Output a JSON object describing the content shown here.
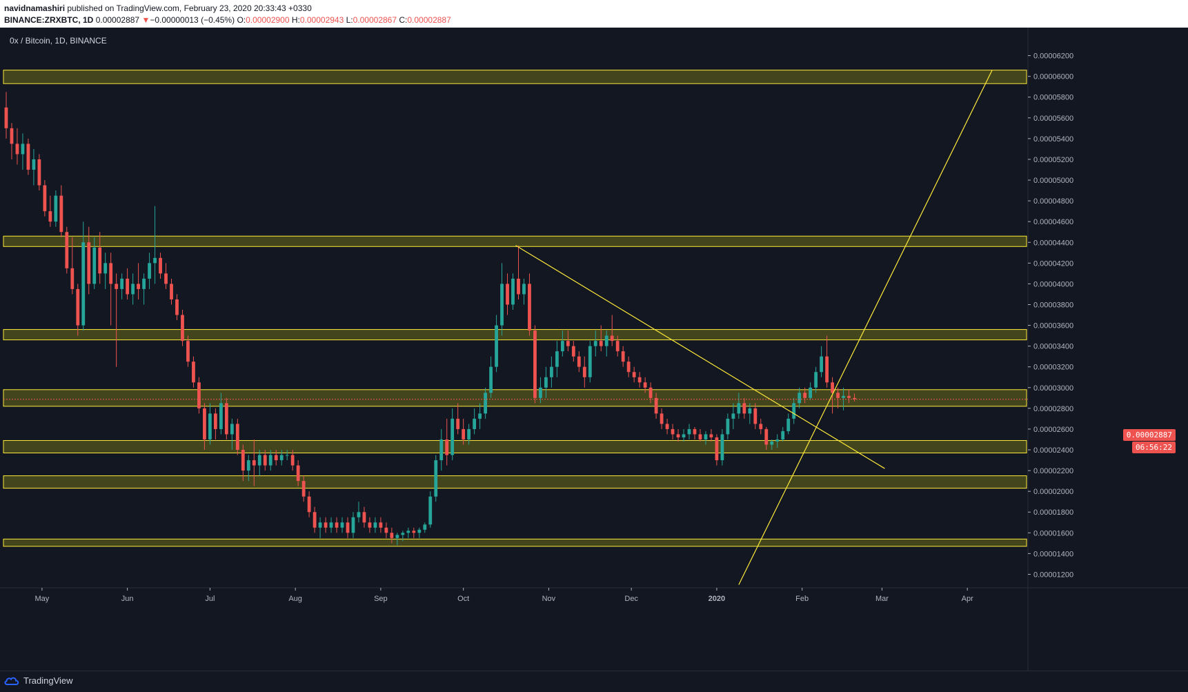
{
  "header": {
    "author": "navidnamashiri",
    "published_text": "published on TradingView.com, February 23, 2020 20:33:43 +0330",
    "symbol": "BINANCE:ZRXBTC, 1D",
    "last_price": "0.00002887",
    "change_arrow": "▼",
    "change_text": "−0.00000013 (−0.45%)",
    "o_label": "O:",
    "o_value": "0.00002900",
    "h_label": "H:",
    "h_value": "0.00002943",
    "l_label": "L:",
    "l_value": "0.00002867",
    "c_label": "C:",
    "c_value": "0.00002887"
  },
  "legend": {
    "title": "0x / Bitcoin, 1D, BINANCE"
  },
  "footer": {
    "brand": "TradingView"
  },
  "price_labels": {
    "current": "0.00002887",
    "countdown": "06:56:22",
    "partial": "0."
  },
  "colors": {
    "background": "#131722",
    "up": "#26a69a",
    "down": "#ef5350",
    "zone_fill": "#6b6b1a",
    "zone_stroke": "#ffeb3b",
    "trendline": "#ffeb3b",
    "axis_text": "#b2b5be"
  },
  "chart_data": {
    "type": "candlestick",
    "title": "0x / Bitcoin, 1D, BINANCE",
    "x_tick_labels": [
      "May",
      "Jun",
      "Jul",
      "Aug",
      "Sep",
      "Oct",
      "Nov",
      "Dec",
      "2020",
      "Feb",
      "Mar",
      "Apr"
    ],
    "y_tick_labels": [
      "0.00006200",
      "0.00006000",
      "0.00005800",
      "0.00005600",
      "0.00005400",
      "0.00005200",
      "0.00005000",
      "0.00004800",
      "0.00004600",
      "0.00004400",
      "0.00004200",
      "0.00004000",
      "0.00003800",
      "0.00003600",
      "0.00003400",
      "0.00003200",
      "0.00003000",
      "0.00002800",
      "0.00002600",
      "0.00002400",
      "0.00002200",
      "0.00002000",
      "0.00001800",
      "0.00001600",
      "0.00001400",
      "0.00001200"
    ],
    "ylim": [
      1.07e-05,
      6.47e-05
    ],
    "current_price": 2.887e-05,
    "horizontal_zones": [
      [
        5.93e-05,
        6.06e-05
      ],
      [
        4.36e-05,
        4.46e-05
      ],
      [
        3.46e-05,
        3.56e-05
      ],
      [
        2.82e-05,
        2.98e-05
      ],
      [
        2.37e-05,
        2.49e-05
      ],
      [
        2.03e-05,
        2.15e-05
      ],
      [
        1.47e-05,
        1.54e-05
      ]
    ],
    "trendlines": [
      {
        "from": [
          "2019-10-20",
          4.37e-05
        ],
        "to": [
          "2020-03-02",
          2.22e-05
        ]
      },
      {
        "from": [
          "2020-01-09",
          1.1e-05
        ],
        "to": [
          "2020-04-10",
          6.06e-05
        ]
      }
    ],
    "candles_ohlc": [
      [
        "2019-04-18",
        5.7,
        5.85,
        5.4,
        5.5
      ],
      [
        "2019-04-20",
        5.5,
        5.55,
        5.2,
        5.35
      ],
      [
        "2019-04-22",
        5.35,
        5.5,
        5.15,
        5.25
      ],
      [
        "2019-04-24",
        5.25,
        5.45,
        5.1,
        5.35
      ],
      [
        "2019-04-26",
        5.35,
        5.4,
        5.05,
        5.1
      ],
      [
        "2019-04-28",
        5.1,
        5.3,
        4.95,
        5.2
      ],
      [
        "2019-04-30",
        5.2,
        5.25,
        4.9,
        4.95
      ],
      [
        "2019-05-02",
        4.95,
        5.0,
        4.65,
        4.7
      ],
      [
        "2019-05-04",
        4.7,
        4.85,
        4.55,
        4.6
      ],
      [
        "2019-05-06",
        4.6,
        4.9,
        4.55,
        4.85
      ],
      [
        "2019-05-08",
        4.85,
        4.95,
        4.45,
        4.5
      ],
      [
        "2019-05-10",
        4.5,
        4.55,
        4.1,
        4.15
      ],
      [
        "2019-05-12",
        4.15,
        4.45,
        3.9,
        3.95
      ],
      [
        "2019-05-14",
        3.95,
        4.0,
        3.5,
        3.6
      ],
      [
        "2019-05-16",
        3.6,
        4.6,
        3.55,
        4.4
      ],
      [
        "2019-05-18",
        4.4,
        4.55,
        3.9,
        4.0
      ],
      [
        "2019-05-20",
        4.0,
        4.45,
        3.95,
        4.35
      ],
      [
        "2019-05-22",
        4.35,
        4.5,
        4.0,
        4.1
      ],
      [
        "2019-05-24",
        4.1,
        4.3,
        3.95,
        4.2
      ],
      [
        "2019-05-26",
        4.2,
        4.3,
        3.6,
        4.0
      ],
      [
        "2019-05-28",
        4.0,
        4.1,
        3.2,
        3.95
      ],
      [
        "2019-05-30",
        3.95,
        4.1,
        3.85,
        4.05
      ],
      [
        "2019-06-01",
        4.05,
        4.15,
        3.85,
        3.9
      ],
      [
        "2019-06-03",
        3.9,
        4.1,
        3.8,
        4.0
      ],
      [
        "2019-06-05",
        4.0,
        4.2,
        3.85,
        3.95
      ],
      [
        "2019-06-07",
        3.95,
        4.1,
        3.8,
        4.05
      ],
      [
        "2019-06-09",
        4.05,
        4.3,
        3.95,
        4.2
      ],
      [
        "2019-06-11",
        4.2,
        4.75,
        4.0,
        4.25
      ],
      [
        "2019-06-13",
        4.25,
        4.3,
        4.05,
        4.1
      ],
      [
        "2019-06-15",
        4.1,
        4.2,
        3.95,
        4.0
      ],
      [
        "2019-06-17",
        4.0,
        4.05,
        3.8,
        3.85
      ],
      [
        "2019-06-19",
        3.85,
        3.9,
        3.65,
        3.7
      ],
      [
        "2019-06-21",
        3.7,
        3.75,
        3.4,
        3.45
      ],
      [
        "2019-06-23",
        3.45,
        3.5,
        3.2,
        3.25
      ],
      [
        "2019-06-25",
        3.25,
        3.3,
        3.0,
        3.05
      ],
      [
        "2019-06-27",
        3.05,
        3.1,
        2.75,
        2.8
      ],
      [
        "2019-06-29",
        2.8,
        2.85,
        2.4,
        2.5
      ],
      [
        "2019-07-01",
        2.5,
        2.85,
        2.45,
        2.75
      ],
      [
        "2019-07-03",
        2.75,
        2.8,
        2.5,
        2.6
      ],
      [
        "2019-07-05",
        2.6,
        2.95,
        2.55,
        2.85
      ],
      [
        "2019-07-07",
        2.85,
        2.9,
        2.5,
        2.55
      ],
      [
        "2019-07-09",
        2.55,
        2.7,
        2.4,
        2.65
      ],
      [
        "2019-07-11",
        2.65,
        2.7,
        2.35,
        2.4
      ],
      [
        "2019-07-13",
        2.4,
        2.45,
        2.1,
        2.2
      ],
      [
        "2019-07-15",
        2.2,
        2.35,
        2.1,
        2.3
      ],
      [
        "2019-07-17",
        2.3,
        2.5,
        2.05,
        2.25
      ],
      [
        "2019-07-19",
        2.25,
        2.4,
        2.15,
        2.35
      ],
      [
        "2019-07-21",
        2.35,
        2.4,
        2.2,
        2.25
      ],
      [
        "2019-07-23",
        2.25,
        2.4,
        2.2,
        2.35
      ],
      [
        "2019-07-25",
        2.35,
        2.4,
        2.25,
        2.3
      ],
      [
        "2019-07-27",
        2.3,
        2.4,
        2.25,
        2.35
      ],
      [
        "2019-07-29",
        2.35,
        2.4,
        2.3,
        2.35
      ],
      [
        "2019-07-31",
        2.35,
        2.4,
        2.2,
        2.25
      ],
      [
        "2019-08-02",
        2.25,
        2.3,
        2.05,
        2.1
      ],
      [
        "2019-08-04",
        2.1,
        2.15,
        1.9,
        1.95
      ],
      [
        "2019-08-06",
        1.95,
        2.0,
        1.75,
        1.8
      ],
      [
        "2019-08-08",
        1.8,
        1.85,
        1.6,
        1.65
      ],
      [
        "2019-08-10",
        1.65,
        1.75,
        1.55,
        1.7
      ],
      [
        "2019-08-12",
        1.7,
        1.75,
        1.6,
        1.65
      ],
      [
        "2019-08-14",
        1.65,
        1.75,
        1.6,
        1.7
      ],
      [
        "2019-08-16",
        1.7,
        1.75,
        1.6,
        1.65
      ],
      [
        "2019-08-18",
        1.65,
        1.75,
        1.6,
        1.7
      ],
      [
        "2019-08-20",
        1.7,
        1.75,
        1.55,
        1.6
      ],
      [
        "2019-08-22",
        1.6,
        1.8,
        1.55,
        1.75
      ],
      [
        "2019-08-24",
        1.75,
        1.9,
        1.7,
        1.8
      ],
      [
        "2019-08-26",
        1.8,
        1.85,
        1.65,
        1.7
      ],
      [
        "2019-08-28",
        1.7,
        1.75,
        1.6,
        1.65
      ],
      [
        "2019-08-30",
        1.65,
        1.75,
        1.6,
        1.7
      ],
      [
        "2019-09-01",
        1.7,
        1.75,
        1.6,
        1.65
      ],
      [
        "2019-09-03",
        1.65,
        1.7,
        1.55,
        1.6
      ],
      [
        "2019-09-05",
        1.6,
        1.65,
        1.5,
        1.55
      ],
      [
        "2019-09-07",
        1.55,
        1.6,
        1.48,
        1.58
      ],
      [
        "2019-09-09",
        1.58,
        1.62,
        1.52,
        1.6
      ],
      [
        "2019-09-11",
        1.6,
        1.65,
        1.55,
        1.62
      ],
      [
        "2019-09-13",
        1.62,
        1.65,
        1.55,
        1.6
      ],
      [
        "2019-09-15",
        1.6,
        1.65,
        1.55,
        1.63
      ],
      [
        "2019-09-17",
        1.63,
        1.7,
        1.6,
        1.68
      ],
      [
        "2019-09-19",
        1.68,
        2.0,
        1.65,
        1.95
      ],
      [
        "2019-09-21",
        1.95,
        2.35,
        1.9,
        2.3
      ],
      [
        "2019-09-23",
        2.3,
        2.6,
        2.2,
        2.5
      ],
      [
        "2019-09-25",
        2.5,
        2.7,
        2.25,
        2.35
      ],
      [
        "2019-09-27",
        2.35,
        2.8,
        2.3,
        2.7
      ],
      [
        "2019-09-29",
        2.7,
        2.85,
        2.55,
        2.6
      ],
      [
        "2019-10-01",
        2.6,
        2.7,
        2.45,
        2.5
      ],
      [
        "2019-10-03",
        2.5,
        2.65,
        2.45,
        2.6
      ],
      [
        "2019-10-05",
        2.6,
        2.8,
        2.55,
        2.7
      ],
      [
        "2019-10-07",
        2.7,
        2.85,
        2.6,
        2.75
      ],
      [
        "2019-10-09",
        2.75,
        3.0,
        2.7,
        2.95
      ],
      [
        "2019-10-11",
        2.95,
        3.3,
        2.9,
        3.2
      ],
      [
        "2019-10-13",
        3.2,
        3.7,
        3.15,
        3.6
      ],
      [
        "2019-10-15",
        3.6,
        4.2,
        3.5,
        4.0
      ],
      [
        "2019-10-17",
        4.0,
        4.1,
        3.7,
        3.8
      ],
      [
        "2019-10-19",
        3.8,
        4.1,
        3.75,
        4.05
      ],
      [
        "2019-10-21",
        4.05,
        4.37,
        3.85,
        3.9
      ],
      [
        "2019-10-23",
        3.9,
        4.05,
        3.8,
        4.0
      ],
      [
        "2019-10-25",
        4.0,
        4.1,
        3.5,
        3.55
      ],
      [
        "2019-10-27",
        3.55,
        3.6,
        2.85,
        2.9
      ],
      [
        "2019-10-29",
        2.9,
        3.1,
        2.85,
        3.0
      ],
      [
        "2019-10-31",
        3.0,
        3.2,
        2.9,
        3.1
      ],
      [
        "2019-11-02",
        3.1,
        3.3,
        3.0,
        3.2
      ],
      [
        "2019-11-04",
        3.2,
        3.45,
        3.1,
        3.35
      ],
      [
        "2019-11-06",
        3.35,
        3.55,
        3.3,
        3.45
      ],
      [
        "2019-11-08",
        3.45,
        3.55,
        3.35,
        3.4
      ],
      [
        "2019-11-10",
        3.4,
        3.45,
        3.25,
        3.3
      ],
      [
        "2019-11-12",
        3.3,
        3.35,
        3.15,
        3.2
      ],
      [
        "2019-11-14",
        3.2,
        3.3,
        3.0,
        3.1
      ],
      [
        "2019-11-16",
        3.1,
        3.45,
        3.05,
        3.4
      ],
      [
        "2019-11-18",
        3.4,
        3.55,
        3.3,
        3.45
      ],
      [
        "2019-11-20",
        3.45,
        3.6,
        3.35,
        3.4
      ],
      [
        "2019-11-22",
        3.4,
        3.55,
        3.3,
        3.5
      ],
      [
        "2019-11-24",
        3.5,
        3.7,
        3.4,
        3.45
      ],
      [
        "2019-11-26",
        3.45,
        3.5,
        3.3,
        3.35
      ],
      [
        "2019-11-28",
        3.35,
        3.4,
        3.2,
        3.25
      ],
      [
        "2019-11-30",
        3.25,
        3.3,
        3.1,
        3.15
      ],
      [
        "2019-12-02",
        3.15,
        3.2,
        3.05,
        3.1
      ],
      [
        "2019-12-04",
        3.1,
        3.15,
        3.0,
        3.05
      ],
      [
        "2019-12-06",
        3.05,
        3.1,
        2.95,
        3.0
      ],
      [
        "2019-12-08",
        3.0,
        3.05,
        2.85,
        2.9
      ],
      [
        "2019-12-10",
        2.9,
        2.95,
        2.7,
        2.75
      ],
      [
        "2019-12-12",
        2.75,
        2.8,
        2.6,
        2.65
      ],
      [
        "2019-12-14",
        2.65,
        2.7,
        2.55,
        2.6
      ],
      [
        "2019-12-16",
        2.6,
        2.65,
        2.5,
        2.55
      ],
      [
        "2019-12-18",
        2.55,
        2.6,
        2.48,
        2.52
      ],
      [
        "2019-12-20",
        2.52,
        2.6,
        2.48,
        2.55
      ],
      [
        "2019-12-22",
        2.55,
        2.65,
        2.5,
        2.6
      ],
      [
        "2019-12-24",
        2.6,
        2.62,
        2.5,
        2.55
      ],
      [
        "2019-12-26",
        2.55,
        2.6,
        2.48,
        2.5
      ],
      [
        "2019-12-28",
        2.5,
        2.58,
        2.45,
        2.55
      ],
      [
        "2019-12-30",
        2.55,
        2.6,
        2.48,
        2.52
      ],
      [
        "2020-01-01",
        2.52,
        2.55,
        2.25,
        2.3
      ],
      [
        "2020-01-03",
        2.3,
        2.6,
        2.25,
        2.55
      ],
      [
        "2020-01-05",
        2.55,
        2.75,
        2.5,
        2.7
      ],
      [
        "2020-01-07",
        2.7,
        2.85,
        2.6,
        2.75
      ],
      [
        "2020-01-09",
        2.75,
        2.95,
        2.7,
        2.85
      ],
      [
        "2020-01-11",
        2.85,
        2.9,
        2.7,
        2.75
      ],
      [
        "2020-01-13",
        2.75,
        2.85,
        2.65,
        2.8
      ],
      [
        "2020-01-15",
        2.8,
        2.85,
        2.6,
        2.65
      ],
      [
        "2020-01-17",
        2.65,
        2.7,
        2.55,
        2.6
      ],
      [
        "2020-01-19",
        2.6,
        2.62,
        2.4,
        2.45
      ],
      [
        "2020-01-21",
        2.45,
        2.5,
        2.4,
        2.48
      ],
      [
        "2020-01-23",
        2.48,
        2.55,
        2.42,
        2.5
      ],
      [
        "2020-01-25",
        2.5,
        2.62,
        2.48,
        2.58
      ],
      [
        "2020-01-27",
        2.58,
        2.75,
        2.55,
        2.7
      ],
      [
        "2020-01-29",
        2.7,
        2.9,
        2.65,
        2.85
      ],
      [
        "2020-01-31",
        2.85,
        3.0,
        2.8,
        2.95
      ],
      [
        "2020-02-02",
        2.95,
        3.0,
        2.85,
        2.9
      ],
      [
        "2020-02-04",
        2.9,
        3.05,
        2.88,
        3.0
      ],
      [
        "2020-02-06",
        3.0,
        3.2,
        2.95,
        3.15
      ],
      [
        "2020-02-08",
        3.15,
        3.4,
        3.1,
        3.3
      ],
      [
        "2020-02-10",
        3.3,
        3.5,
        3.0,
        3.05
      ],
      [
        "2020-02-12",
        3.05,
        3.1,
        2.75,
        2.95
      ],
      [
        "2020-02-14",
        2.95,
        3.0,
        2.8,
        2.9
      ],
      [
        "2020-02-16",
        2.9,
        3.0,
        2.78,
        2.92
      ],
      [
        "2020-02-18",
        2.92,
        2.98,
        2.85,
        2.9
      ],
      [
        "2020-02-20",
        2.9,
        2.943,
        2.867,
        2.887
      ]
    ],
    "candles_scale": 1e-05
  }
}
